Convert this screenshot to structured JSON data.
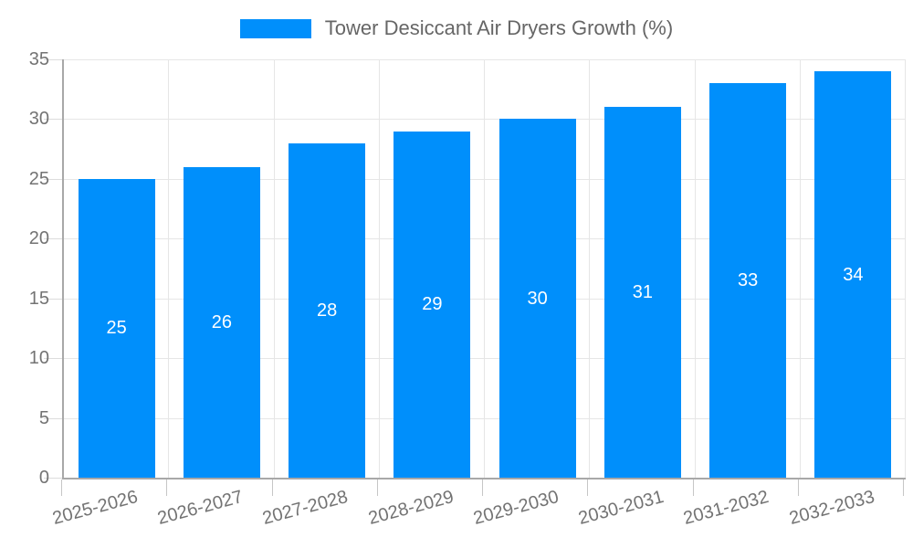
{
  "legend": {
    "label": "Tower Desiccant Air Dryers Growth (%)"
  },
  "chart_data": {
    "type": "bar",
    "title": "Tower Desiccant Air Dryers Growth (%)",
    "categories": [
      "2025-2026",
      "2026-2027",
      "2027-2028",
      "2028-2029",
      "2029-2030",
      "2030-2031",
      "2031-2032",
      "2032-2033"
    ],
    "values": [
      25,
      26,
      28,
      29,
      30,
      31,
      33,
      34
    ],
    "series": [
      {
        "name": "Tower Desiccant Air Dryers Growth (%)",
        "values": [
          25,
          26,
          28,
          29,
          30,
          31,
          33,
          34
        ]
      }
    ],
    "xlabel": "",
    "ylabel": "",
    "ylim": [
      0,
      35
    ],
    "yticks": [
      0,
      5,
      10,
      15,
      20,
      25,
      30,
      35
    ],
    "grid": true,
    "legend_position": "top-center",
    "value_labels_position": "inside-center"
  },
  "colors": {
    "bar": "#008FFB",
    "grid": "#e6e6e6",
    "axis": "#a8a8a8",
    "tick_text": "#737373",
    "legend_text": "#666666",
    "value_label_text": "#ffffff",
    "background": "#ffffff"
  }
}
